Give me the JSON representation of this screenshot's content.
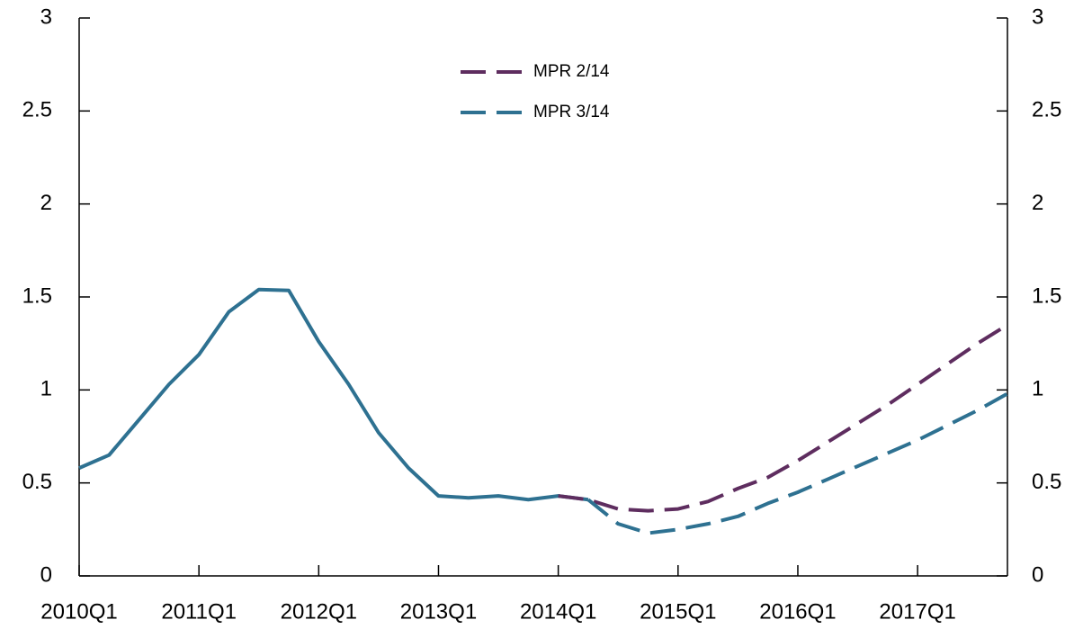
{
  "chart_data": {
    "type": "line",
    "categories": [
      "2010Q1",
      null,
      null,
      null,
      "2011Q1",
      null,
      null,
      null,
      "2012Q1",
      null,
      null,
      null,
      "2013Q1",
      null,
      null,
      null,
      "2014Q1",
      null,
      null,
      null,
      "2015Q1",
      null,
      null,
      null,
      "2016Q1",
      null,
      null,
      null,
      "2017Q1",
      null,
      null,
      null
    ],
    "series": [
      {
        "color": "#2e7191",
        "style": "solid",
        "values": [
          0.58,
          0.65,
          0.84,
          1.03,
          1.19,
          1.42,
          1.54,
          1.535,
          1.26,
          1.03,
          0.77,
          0.58,
          0.43,
          0.42,
          0.43,
          0.41,
          0.43,
          0.41,
          null,
          null,
          null,
          null,
          null,
          null,
          null,
          null,
          null,
          null,
          null,
          null,
          null,
          null
        ]
      },
      {
        "name": "MPR 2/14",
        "color": "#5e2d5f",
        "style": "dashed",
        "values": [
          null,
          null,
          null,
          null,
          null,
          null,
          null,
          null,
          null,
          null,
          null,
          null,
          null,
          null,
          null,
          null,
          0.43,
          0.41,
          0.36,
          0.35,
          0.36,
          0.4,
          0.47,
          0.53,
          0.62,
          0.72,
          0.82,
          0.92,
          1.03,
          1.14,
          1.25,
          1.35
        ]
      },
      {
        "name": "MPR 3/14",
        "color": "#2e7191",
        "style": "dashed",
        "values": [
          null,
          null,
          null,
          null,
          null,
          null,
          null,
          null,
          null,
          null,
          null,
          null,
          null,
          null,
          null,
          null,
          null,
          0.41,
          0.28,
          0.23,
          0.25,
          0.28,
          0.32,
          0.39,
          0.45,
          0.52,
          0.59,
          0.66,
          0.73,
          0.81,
          0.89,
          0.98
        ]
      }
    ],
    "ylim": [
      0,
      3
    ],
    "yticks": [
      0,
      0.5,
      1,
      1.5,
      2,
      2.5,
      3
    ],
    "y2lim": [
      0,
      3
    ],
    "y2ticks": [
      0,
      0.5,
      1,
      1.5,
      2,
      2.5,
      3
    ],
    "grid": false,
    "legend": "top center"
  }
}
